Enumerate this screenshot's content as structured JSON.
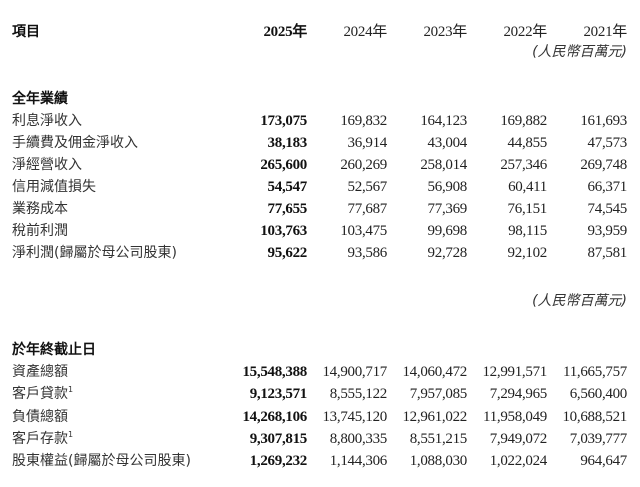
{
  "header": {
    "item_label": "項目",
    "years": [
      "2025年",
      "2024年",
      "2023年",
      "2022年",
      "2021年"
    ],
    "unit_note": "(人民幣百萬元)"
  },
  "section1": {
    "title": "全年業績",
    "rows": [
      {
        "label": "利息淨收入",
        "values": [
          "173,075",
          "169,832",
          "164,123",
          "169,882",
          "161,693"
        ]
      },
      {
        "label": "手續費及佣金淨收入",
        "values": [
          "38,183",
          "36,914",
          "43,004",
          "44,855",
          "47,573"
        ]
      },
      {
        "label": "淨經營收入",
        "values": [
          "265,600",
          "260,269",
          "258,014",
          "257,346",
          "269,748"
        ]
      },
      {
        "label": "信用減值損失",
        "values": [
          "54,547",
          "52,567",
          "56,908",
          "60,411",
          "66,371"
        ]
      },
      {
        "label": "業務成本",
        "values": [
          "77,655",
          "77,687",
          "77,369",
          "76,151",
          "74,545"
        ]
      },
      {
        "label": "稅前利潤",
        "values": [
          "103,763",
          "103,475",
          "99,698",
          "98,115",
          "93,959"
        ]
      },
      {
        "label": "淨利潤(歸屬於母公司股東)",
        "values": [
          "95,622",
          "93,586",
          "92,728",
          "92,102",
          "87,581"
        ]
      }
    ]
  },
  "unit_note_2": "(人民幣百萬元)",
  "section2": {
    "title": "於年終截止日",
    "rows": [
      {
        "label": "資產總額",
        "footnote": "",
        "values": [
          "15,548,388",
          "14,900,717",
          "14,060,472",
          "12,991,571",
          "11,665,757"
        ]
      },
      {
        "label": "客戶貸款",
        "footnote": "1",
        "values": [
          "9,123,571",
          "8,555,122",
          "7,957,085",
          "7,294,965",
          "6,560,400"
        ]
      },
      {
        "label": "負債總額",
        "footnote": "",
        "values": [
          "14,268,106",
          "13,745,120",
          "12,961,022",
          "11,958,049",
          "10,688,521"
        ]
      },
      {
        "label": "客戶存款",
        "footnote": "1",
        "values": [
          "9,307,815",
          "8,800,335",
          "8,551,215",
          "7,949,072",
          "7,039,777"
        ]
      },
      {
        "label": "股東權益(歸屬於母公司股東)",
        "footnote": "",
        "values": [
          "1,269,232",
          "1,144,306",
          "1,088,030",
          "1,022,024",
          "964,647"
        ]
      }
    ]
  }
}
